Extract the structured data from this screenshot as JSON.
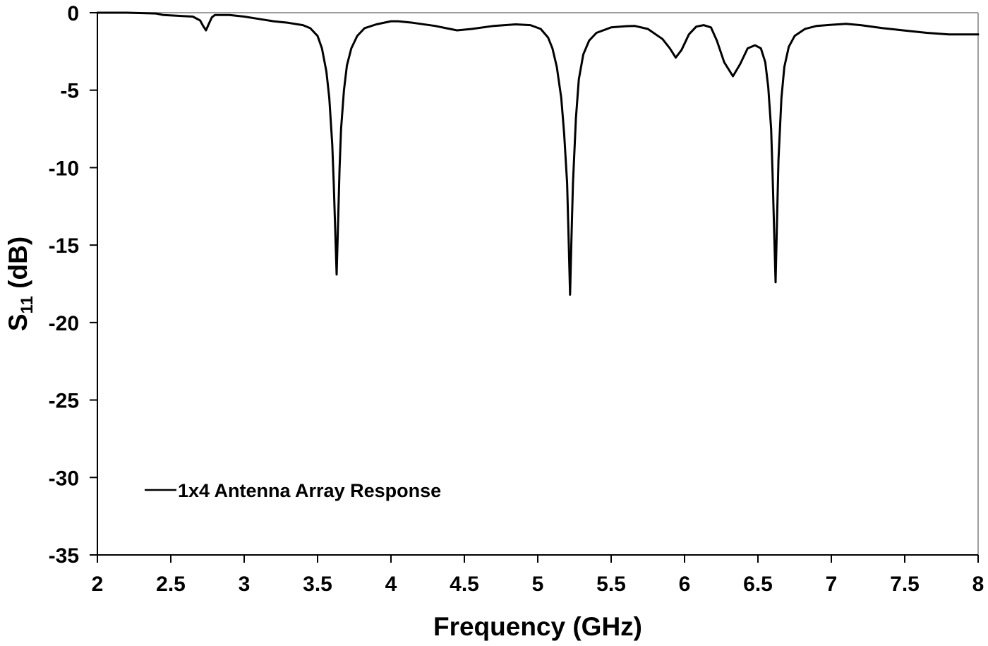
{
  "chart_data": {
    "type": "line",
    "title": "",
    "xlabel": "Frequency (GHz)",
    "ylabel": "S11 (dB)",
    "ylabel_main": "S",
    "ylabel_sub": "11",
    "ylabel_unit": " (dB)",
    "xlim": [
      2,
      8
    ],
    "ylim": [
      -35,
      0
    ],
    "xticks": [
      2,
      2.5,
      3,
      3.5,
      4,
      4.5,
      5,
      5.5,
      6,
      6.5,
      7,
      7.5,
      8
    ],
    "xtick_labels": [
      "2",
      "2.5",
      "3",
      "3.5",
      "4",
      "4.5",
      "5",
      "5.5",
      "6",
      "6.5",
      "7",
      "7.5",
      "8"
    ],
    "yticks": [
      0,
      -5,
      -10,
      -15,
      -20,
      -25,
      -30,
      -35
    ],
    "ytick_labels": [
      "0",
      "-5",
      "-10",
      "-15",
      "-20",
      "-25",
      "-30",
      "-35"
    ],
    "grid": false,
    "legend_position": "lower-left (inside plot)",
    "series": [
      {
        "name": "1x4 Antenna Array Response",
        "color": "#000000",
        "x": [
          2.0,
          2.2,
          2.4,
          2.45,
          2.55,
          2.65,
          2.7,
          2.72,
          2.74,
          2.76,
          2.78,
          2.8,
          2.9,
          3.0,
          3.1,
          3.2,
          3.3,
          3.4,
          3.45,
          3.5,
          3.53,
          3.56,
          3.58,
          3.6,
          3.61,
          3.62,
          3.63,
          3.64,
          3.65,
          3.66,
          3.68,
          3.7,
          3.73,
          3.77,
          3.82,
          3.9,
          4.0,
          4.05,
          4.15,
          4.3,
          4.45,
          4.55,
          4.7,
          4.85,
          4.95,
          5.02,
          5.07,
          5.1,
          5.13,
          5.16,
          5.18,
          5.2,
          5.21,
          5.22,
          5.23,
          5.24,
          5.26,
          5.28,
          5.31,
          5.35,
          5.4,
          5.5,
          5.6,
          5.66,
          5.75,
          5.85,
          5.9,
          5.94,
          5.98,
          6.03,
          6.08,
          6.13,
          6.18,
          6.22,
          6.27,
          6.33,
          6.38,
          6.43,
          6.48,
          6.52,
          6.55,
          6.57,
          6.59,
          6.6,
          6.61,
          6.62,
          6.63,
          6.64,
          6.66,
          6.68,
          6.71,
          6.75,
          6.82,
          6.9,
          7.0,
          7.1,
          7.2,
          7.35,
          7.5,
          7.65,
          7.8,
          8.0
        ],
        "values": [
          0.0,
          0.0,
          -0.05,
          -0.15,
          -0.2,
          -0.25,
          -0.5,
          -0.85,
          -1.14,
          -0.7,
          -0.3,
          -0.15,
          -0.15,
          -0.25,
          -0.4,
          -0.55,
          -0.65,
          -0.8,
          -1.0,
          -1.5,
          -2.3,
          -3.8,
          -5.5,
          -8.5,
          -11.0,
          -14.0,
          -16.9,
          -13.5,
          -10.0,
          -7.5,
          -5.0,
          -3.4,
          -2.3,
          -1.5,
          -1.0,
          -0.75,
          -0.55,
          -0.55,
          -0.65,
          -0.85,
          -1.14,
          -1.05,
          -0.85,
          -0.75,
          -0.8,
          -1.05,
          -1.6,
          -2.3,
          -3.5,
          -5.5,
          -7.8,
          -11.0,
          -14.5,
          -18.2,
          -14.5,
          -11.0,
          -6.8,
          -4.3,
          -2.7,
          -1.8,
          -1.3,
          -0.95,
          -0.87,
          -0.85,
          -1.05,
          -1.7,
          -2.3,
          -2.9,
          -2.4,
          -1.4,
          -0.9,
          -0.8,
          -0.95,
          -1.8,
          -3.2,
          -4.1,
          -3.3,
          -2.3,
          -2.1,
          -2.3,
          -3.2,
          -4.8,
          -7.5,
          -10.5,
          -14.0,
          -17.4,
          -13.5,
          -9.5,
          -5.5,
          -3.5,
          -2.2,
          -1.5,
          -1.05,
          -0.85,
          -0.78,
          -0.72,
          -0.8,
          -1.0,
          -1.15,
          -1.3,
          -1.4,
          -1.4
        ]
      }
    ]
  },
  "legend": {
    "entries": [
      {
        "label": "1x4 Antenna Array Response",
        "color": "#000000"
      }
    ]
  }
}
